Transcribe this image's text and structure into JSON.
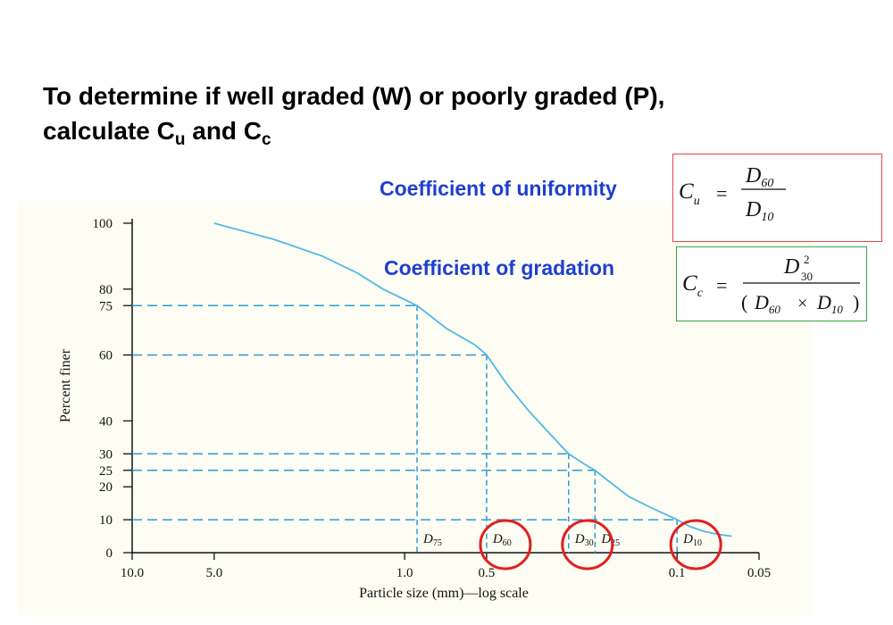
{
  "heading": {
    "line1": "To determine if well graded (W) or poorly graded (P),",
    "line2_prefix": "calculate C",
    "cu_sub": "u",
    "and": " and C",
    "cc_sub": "c"
  },
  "labels": {
    "uniformity": "Coefficient of uniformity",
    "gradation": "Coefficient of gradation"
  },
  "formulas": {
    "cu": {
      "lhs": "C",
      "lhs_sub": "u",
      "eq": "=",
      "num": "D",
      "num_sub": "60",
      "den": "D",
      "den_sub": "10"
    },
    "cc": {
      "lhs": "C",
      "lhs_sub": "c",
      "eq": "=",
      "num": "D",
      "num_sub": "30",
      "num_sup": "2",
      "den_open": "(",
      "den_a": "D",
      "den_a_sub": "60",
      "den_op": "×",
      "den_b": "D",
      "den_b_sub": "10",
      "den_close": ")"
    }
  },
  "colors": {
    "curve": "#52b8e6",
    "guide": "#2e9ad4",
    "circle": "#e0201e",
    "label_blue": "#1f3fcf",
    "box_red": "#e8484a",
    "box_green": "#3aa53a",
    "chart_bg": "#fdfdf3"
  },
  "chart_data": {
    "type": "line",
    "xlabel": "Particle size (mm)—log scale",
    "ylabel": "Percent finer",
    "xscale": "log",
    "xreversed": true,
    "xlim": [
      10.0,
      0.05
    ],
    "ylim": [
      0,
      100
    ],
    "x_ticks": [
      {
        "value": 10.0,
        "label": "10.0"
      },
      {
        "value": 5.0,
        "label": "5.0"
      },
      {
        "value": 1.0,
        "label": "1.0"
      },
      {
        "value": 0.5,
        "label": "0.5"
      },
      {
        "value": 0.1,
        "label": "0.1"
      },
      {
        "value": 0.05,
        "label": "0.05"
      }
    ],
    "y_ticks": [
      0,
      10,
      20,
      25,
      30,
      40,
      60,
      75,
      80,
      100
    ],
    "grid": false,
    "series": [
      {
        "x": [
          5.0,
          3.0,
          2.0,
          1.5,
          1.2,
          0.9,
          0.7,
          0.55,
          0.5,
          0.42,
          0.35,
          0.3,
          0.25,
          0.22,
          0.2,
          0.18,
          0.15,
          0.12,
          0.1,
          0.09,
          0.08,
          0.07,
          0.063
        ],
        "y": [
          100,
          95,
          90,
          85,
          80,
          75,
          68,
          63,
          60,
          51,
          43,
          37,
          30,
          27,
          25,
          22,
          17,
          13,
          10,
          8,
          6.5,
          5.5,
          5
        ]
      }
    ],
    "reference_points": [
      {
        "name": "D",
        "sub": "75",
        "percent": 75,
        "size": 0.9
      },
      {
        "name": "D",
        "sub": "60",
        "percent": 60,
        "size": 0.5
      },
      {
        "name": "D",
        "sub": "30",
        "percent": 30,
        "size": 0.25
      },
      {
        "name": "D",
        "sub": "25",
        "percent": 25,
        "size": 0.2
      },
      {
        "name": "D",
        "sub": "10",
        "percent": 10,
        "size": 0.1
      }
    ],
    "circled": [
      "60",
      "30",
      "10"
    ]
  }
}
